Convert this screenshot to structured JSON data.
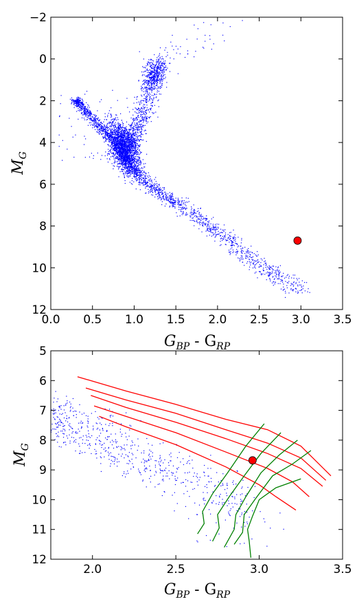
{
  "chart_data": [
    {
      "type": "scatter",
      "xlim": [
        0.0,
        3.5
      ],
      "ylim": [
        12,
        -2
      ],
      "y_inverted": true,
      "xticks": [
        "0.0",
        "0.5",
        "1.0",
        "1.5",
        "2.0",
        "2.5",
        "3.0",
        "3.5"
      ],
      "yticks": [
        "−2",
        "0",
        "2",
        "4",
        "6",
        "8",
        "10",
        "12"
      ],
      "xtick_values": [
        0.0,
        0.5,
        1.0,
        1.5,
        2.0,
        2.5,
        3.0,
        3.5
      ],
      "ytick_values": [
        -2,
        0,
        2,
        4,
        6,
        8,
        10,
        12
      ],
      "xlabel": {
        "main": "G",
        "sub1": "BP",
        "mid": " - G",
        "sub2": "RP"
      },
      "ylabel": {
        "main": "M",
        "sub": "G"
      },
      "point_color": "#0000ff",
      "highlight": {
        "x": 2.96,
        "y": 8.7,
        "color": "#ff0000"
      },
      "main_sequence_ridge": [
        [
          0.3,
          2.0
        ],
        [
          0.6,
          3.3
        ],
        [
          0.8,
          4.1
        ],
        [
          0.95,
          5.0
        ],
        [
          1.1,
          5.8
        ],
        [
          1.3,
          6.4
        ],
        [
          1.5,
          6.9
        ],
        [
          1.8,
          7.7
        ],
        [
          2.1,
          8.6
        ],
        [
          2.4,
          9.6
        ],
        [
          2.7,
          10.4
        ],
        [
          3.0,
          11.1
        ]
      ],
      "giant_branch_ridge": [
        [
          0.95,
          4.1
        ],
        [
          1.05,
          3.2
        ],
        [
          1.15,
          2.2
        ],
        [
          1.2,
          1.0
        ],
        [
          1.3,
          0.3
        ],
        [
          1.5,
          -0.3
        ],
        [
          1.9,
          -1.2
        ],
        [
          2.3,
          -2.0
        ]
      ],
      "red_clump": [
        1.25,
        0.8
      ]
    },
    {
      "type": "line",
      "xlim": [
        1.75,
        3.5
      ],
      "ylim": [
        12,
        5
      ],
      "y_inverted": true,
      "xticks": [
        "2.0",
        "2.5",
        "3.0",
        "3.5"
      ],
      "yticks": [
        "5",
        "6",
        "7",
        "8",
        "9",
        "10",
        "11",
        "12"
      ],
      "xtick_values": [
        2.0,
        2.5,
        3.0,
        3.5
      ],
      "ytick_values": [
        5,
        6,
        7,
        8,
        9,
        10,
        11,
        12
      ],
      "xlabel": {
        "main": "G",
        "sub1": "BP",
        "mid": " - G",
        "sub2": "RP"
      },
      "ylabel": {
        "main": "M",
        "sub": "G"
      },
      "point_color": "#0000ff",
      "red_color": "#ff0000",
      "green_color": "#008000",
      "highlight": {
        "x": 2.96,
        "y": 8.68,
        "color": "#ff0000"
      },
      "red_lines": [
        [
          [
            1.91,
            5.87
          ],
          [
            2.2,
            6.35
          ],
          [
            2.5,
            6.8
          ],
          [
            2.8,
            7.3
          ],
          [
            3.05,
            7.65
          ],
          [
            3.25,
            8.2
          ],
          [
            3.43,
            9.2
          ]
        ],
        [
          [
            1.96,
            6.25
          ],
          [
            2.2,
            6.65
          ],
          [
            2.5,
            7.1
          ],
          [
            2.8,
            7.65
          ],
          [
            3.05,
            8.1
          ],
          [
            3.25,
            8.6
          ],
          [
            3.4,
            9.35
          ]
        ],
        [
          [
            1.99,
            6.5
          ],
          [
            2.2,
            6.9
          ],
          [
            2.5,
            7.4
          ],
          [
            2.8,
            7.95
          ],
          [
            3.05,
            8.45
          ],
          [
            3.25,
            8.95
          ],
          [
            3.38,
            9.55
          ]
        ],
        [
          [
            2.01,
            6.85
          ],
          [
            2.2,
            7.2
          ],
          [
            2.5,
            7.75
          ],
          [
            2.8,
            8.4
          ],
          [
            3.05,
            8.95
          ],
          [
            3.2,
            9.4
          ],
          [
            3.3,
            9.9
          ]
        ],
        [
          [
            2.04,
            7.2
          ],
          [
            2.2,
            7.55
          ],
          [
            2.5,
            8.15
          ],
          [
            2.8,
            8.9
          ],
          [
            3.0,
            9.5
          ],
          [
            3.1,
            9.9
          ],
          [
            3.22,
            10.35
          ]
        ]
      ],
      "green_lines": [
        [
          [
            2.63,
            11.15
          ],
          [
            2.67,
            10.8
          ],
          [
            2.66,
            10.4
          ],
          [
            2.72,
            9.8
          ],
          [
            2.81,
            9.1
          ],
          [
            2.92,
            8.2
          ],
          [
            3.03,
            7.45
          ]
        ],
        [
          [
            2.72,
            11.4
          ],
          [
            2.76,
            10.95
          ],
          [
            2.75,
            10.5
          ],
          [
            2.82,
            9.9
          ],
          [
            2.91,
            9.2
          ],
          [
            3.01,
            8.45
          ],
          [
            3.13,
            7.75
          ]
        ],
        [
          [
            2.79,
            11.6
          ],
          [
            2.85,
            11.0
          ],
          [
            2.86,
            10.5
          ],
          [
            2.92,
            9.9
          ],
          [
            3.01,
            9.1
          ],
          [
            3.12,
            8.5
          ],
          [
            3.23,
            8.0
          ]
        ],
        [
          [
            2.85,
            11.5
          ],
          [
            2.9,
            11.1
          ],
          [
            2.91,
            10.5
          ],
          [
            2.98,
            9.95
          ],
          [
            3.08,
            9.2
          ],
          [
            3.2,
            8.8
          ],
          [
            3.31,
            8.35
          ]
        ],
        [
          [
            2.95,
            11.95
          ],
          [
            2.94,
            11.4
          ],
          [
            2.93,
            11.0
          ],
          [
            2.96,
            10.55
          ],
          [
            3.0,
            10.0
          ],
          [
            3.1,
            9.6
          ],
          [
            3.25,
            9.3
          ]
        ]
      ]
    }
  ]
}
